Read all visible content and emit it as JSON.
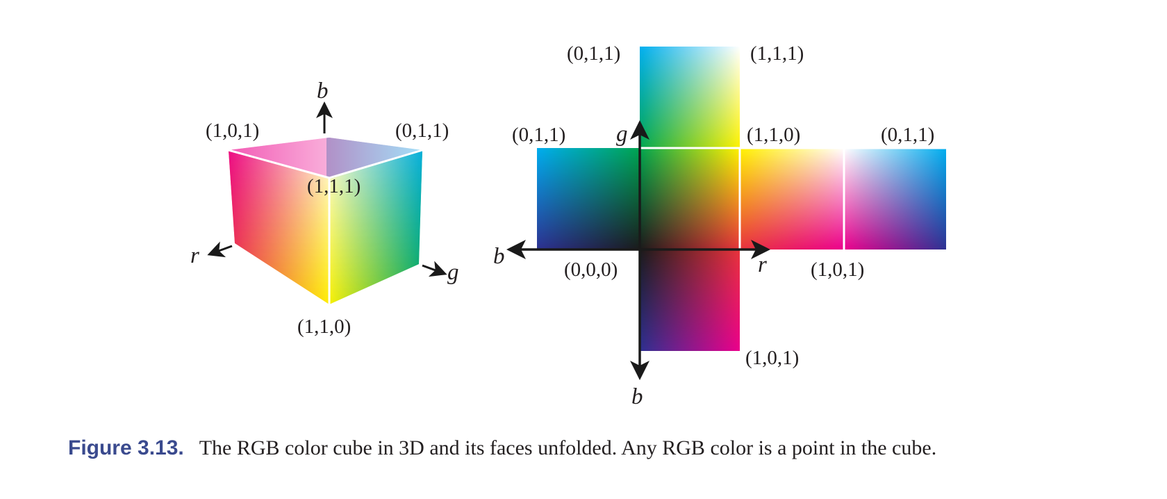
{
  "cube3d": {
    "labels": {
      "top_left": "(1,0,1)",
      "top_right": "(0,1,1)",
      "center": "(1,1,1)",
      "bottom": "(1,1,0)"
    },
    "axes": {
      "b": "b",
      "r": "r",
      "g": "g"
    }
  },
  "unfolded": {
    "labels": {
      "top_left": "(0,1,1)",
      "top_right": "(1,1,1)",
      "left_top": "(0,1,1)",
      "center_top": "(1,1,0)",
      "right_top": "(0,1,1)",
      "origin": "(0,0,0)",
      "right_bottom": "(1,0,1)",
      "bottom_right": "(1,0,1)"
    },
    "axes": {
      "g": "g",
      "b_left": "b",
      "r": "r",
      "b_bottom": "b"
    }
  },
  "caption": {
    "label": "Figure 3.13.",
    "text": "The RGB color cube in 3D and its faces unfolded. Any RGB color is a point in the cube."
  },
  "colors": {
    "black": "#1a1a1a",
    "white": "#ffffff",
    "red": "#e8343b",
    "green": "#00a651",
    "blue": "#2e3192",
    "cyan": "#00aeef",
    "magenta": "#ec008c",
    "yellow": "#fff200"
  }
}
